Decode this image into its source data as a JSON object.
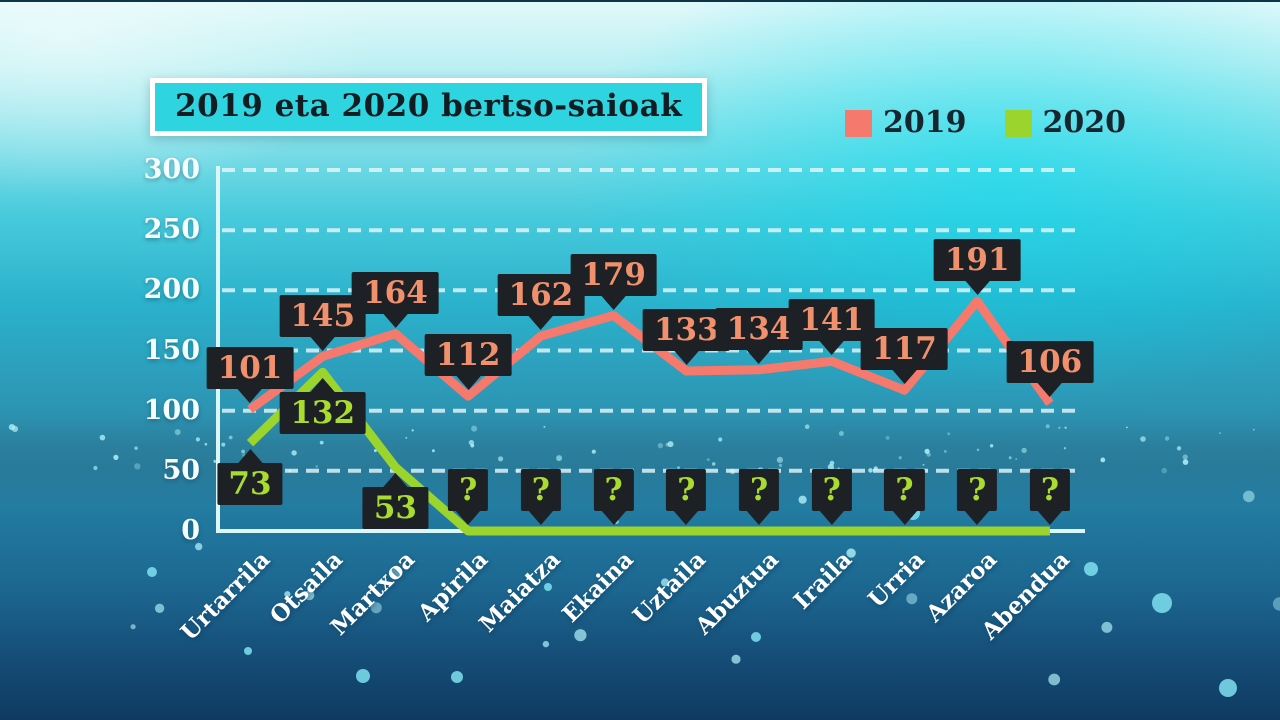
{
  "title": "2019 eta 2020 bertso-saioak",
  "legend": {
    "items": [
      {
        "label": "2019",
        "color": "#f5796c"
      },
      {
        "label": "2020",
        "color": "#9ad42c"
      }
    ]
  },
  "chart_data": {
    "type": "line",
    "title": "2019 eta 2020 bertso-saioak",
    "categories": [
      "Urtarrila",
      "Otsaila",
      "Martxoa",
      "Apirila",
      "Maiatza",
      "Ekaina",
      "Uztaila",
      "Abuztua",
      "Iraila",
      "Urria",
      "Azaroa",
      "Abendua"
    ],
    "series": [
      {
        "name": "2019",
        "color": "#f5796c",
        "label_color": "#f0906c",
        "values": [
          101,
          145,
          164,
          112,
          162,
          179,
          133,
          134,
          141,
          117,
          191,
          106
        ]
      },
      {
        "name": "2020",
        "color": "#9ad42c",
        "label_color": "#a9dc2f",
        "values": [
          73,
          132,
          53,
          "?",
          "?",
          "?",
          "?",
          "?",
          "?",
          "?",
          "?",
          "?"
        ],
        "unknown_plotted_at": 0
      }
    ],
    "xlabel": "",
    "ylabel": "",
    "ylim": [
      0,
      300
    ],
    "yticks": [
      0,
      50,
      100,
      150,
      200,
      250,
      300
    ],
    "grid": "horizontal-dashed",
    "legend_position": "top-right",
    "value_labels": "callout-bubbles",
    "callout_bg": "#1d2125"
  },
  "colors": {
    "axis": "#ddf6f7",
    "gridline": "#e8f8fa",
    "tick_text": "#ffffff",
    "title_box_bg": "#2ed4e0",
    "title_box_border": "#ffffff",
    "title_text": "#111d22",
    "legend_text": "#15262e",
    "particle": "#aeeef6"
  }
}
